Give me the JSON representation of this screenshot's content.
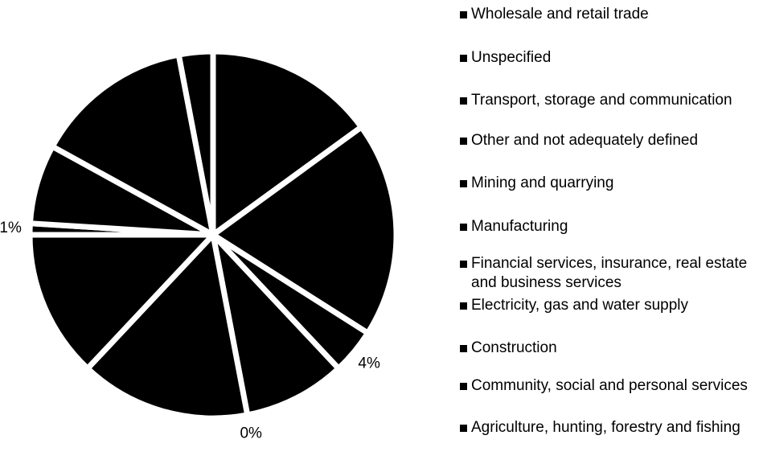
{
  "chart_data": {
    "type": "pie",
    "color": "#000000",
    "categories": [
      "Wholesale and retail trade",
      "Unspecified",
      "Transport, storage and communication",
      "Other and not adequately defined",
      "Mining and quarrying",
      "Manufacturing",
      "Financial services, insurance, real estate and business services",
      "Electricity, gas and water supply",
      "Construction",
      "Community, social and personal services",
      "Agriculture, hunting, forestry and fishing"
    ],
    "values": [
      15,
      19,
      4,
      9,
      0,
      15,
      13,
      1,
      7,
      14,
      3
    ],
    "value_labels": [
      null,
      null,
      "4%",
      null,
      "0%",
      null,
      null,
      "1%",
      null,
      null,
      null
    ],
    "legend": "right"
  }
}
